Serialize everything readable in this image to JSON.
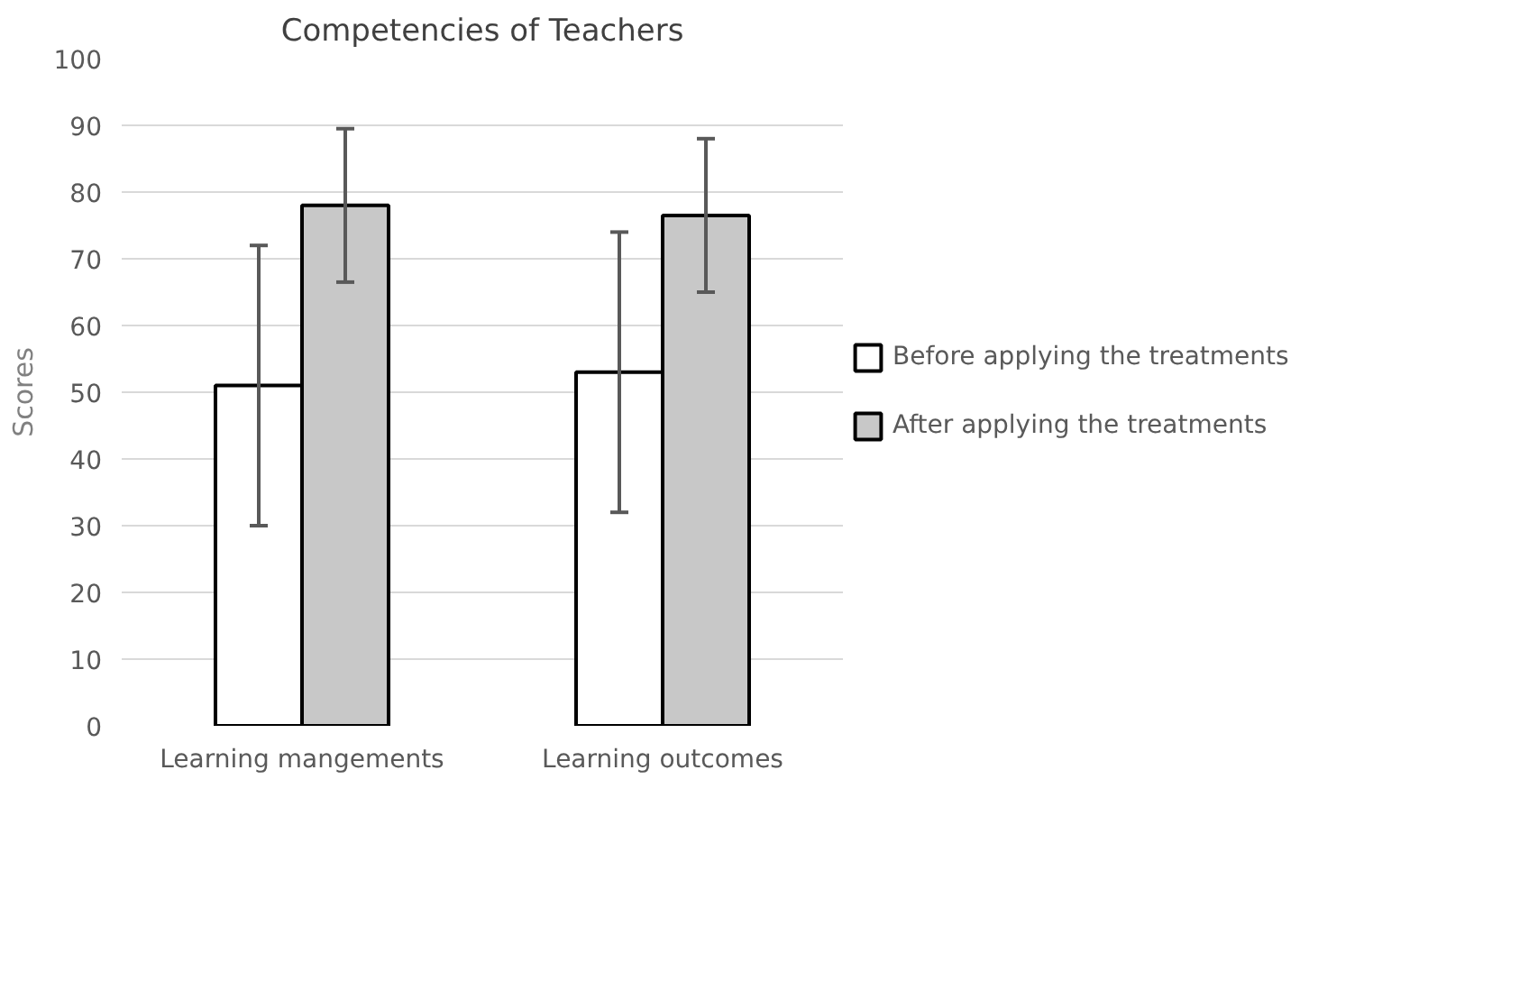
{
  "chart_data": {
    "type": "bar",
    "title": "Competencies of Teachers",
    "ylabel": "Scores",
    "categories": [
      "Learning mangements",
      "Learning outcomes"
    ],
    "series": [
      {
        "name": "Before applying the treatments",
        "color": "#ffffff",
        "values": [
          51,
          53
        ],
        "errors": [
          [
            30,
            72
          ],
          [
            32,
            74
          ]
        ]
      },
      {
        "name": "After applying the treatments",
        "color": "#c8c8c8",
        "values": [
          78,
          76.5
        ],
        "errors": [
          [
            66.5,
            89.5
          ],
          [
            65,
            88
          ]
        ]
      }
    ],
    "ylim": [
      0,
      100
    ],
    "yticks": [
      0,
      10,
      20,
      30,
      40,
      50,
      60,
      70,
      80,
      90,
      100
    ],
    "grid": "y",
    "legend": "right"
  }
}
